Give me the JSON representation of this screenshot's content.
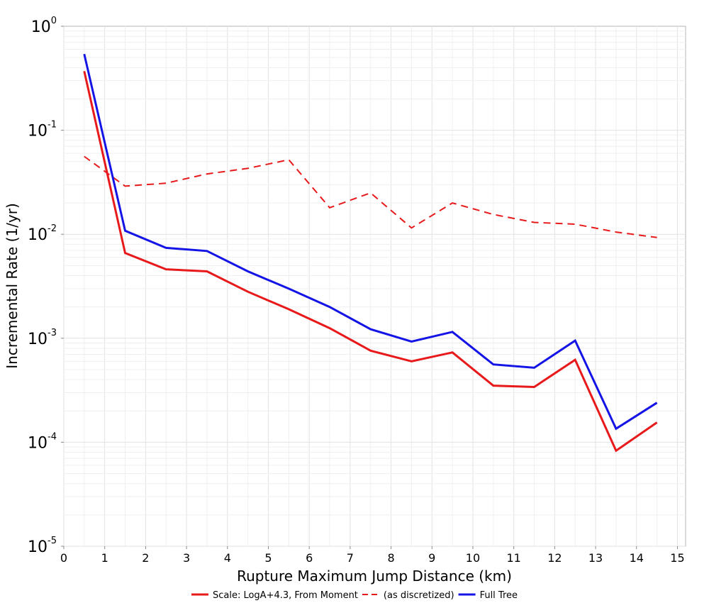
{
  "chart_data": {
    "type": "line",
    "title": "",
    "xlabel": "Rupture Maximum Jump Distance (km)",
    "ylabel": "Incremental Rate (1/yr)",
    "xlim": [
      0,
      15.2
    ],
    "ylim_log10": [
      -5,
      0
    ],
    "y_scale": "log",
    "grid": true,
    "legend_position": "bottom",
    "x_ticks": [
      "0",
      "1",
      "2",
      "3",
      "4",
      "5",
      "6",
      "7",
      "8",
      "9",
      "10",
      "11",
      "12",
      "13",
      "14",
      "15"
    ],
    "y_ticks": [
      {
        "base": "10",
        "exp": "0"
      },
      {
        "base": "10",
        "exp": "-1"
      },
      {
        "base": "10",
        "exp": "-2"
      },
      {
        "base": "10",
        "exp": "-3"
      },
      {
        "base": "10",
        "exp": "-4"
      },
      {
        "base": "10",
        "exp": "-5"
      }
    ],
    "x": [
      0.5,
      1.5,
      2.5,
      3.5,
      4.5,
      5.5,
      6.5,
      7.5,
      8.5,
      9.5,
      10.5,
      11.5,
      12.5,
      13.5,
      14.5
    ],
    "series": [
      {
        "name": "Scale: LogA+4.3, From Moment",
        "color": "#e8191a",
        "style": "solid",
        "values": [
          0.37,
          0.0066,
          0.0046,
          0.0044,
          0.0028,
          0.0019,
          0.00125,
          0.00076,
          0.0006,
          0.00073,
          0.00035,
          0.00034,
          0.00062,
          8.3e-05,
          0.000155
        ]
      },
      {
        "name": "(as discretized)",
        "color": "#e8191a",
        "style": "dashed",
        "values": [
          0.056,
          0.029,
          0.031,
          0.038,
          0.043,
          0.052,
          0.018,
          0.025,
          0.0115,
          0.02,
          0.0155,
          0.013,
          0.0125,
          0.0105,
          0.0093
        ]
      },
      {
        "name": "Full Tree",
        "color": "#1414e6",
        "style": "solid",
        "values": [
          0.54,
          0.0108,
          0.0074,
          0.0069,
          0.0044,
          0.003,
          0.002,
          0.00122,
          0.00093,
          0.00115,
          0.00056,
          0.00052,
          0.00095,
          0.000135,
          0.00024
        ]
      }
    ]
  }
}
